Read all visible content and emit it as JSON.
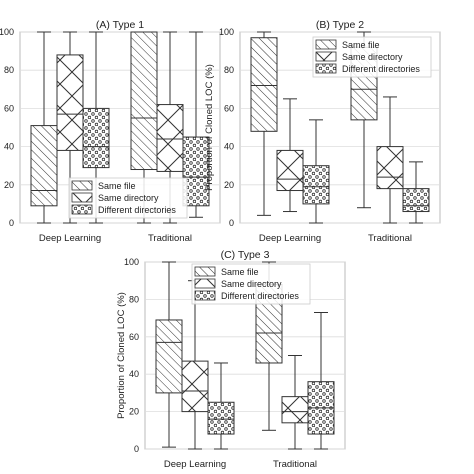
{
  "chart_data": [
    {
      "type": "box",
      "title": "(A) Type 1",
      "xlabel": "",
      "ylabel": "",
      "ylim": [
        0,
        100
      ],
      "yticks": [
        0,
        20,
        40,
        60,
        80,
        100
      ],
      "grid": true,
      "legend_position": "bottom-right",
      "categories": [
        "Deep Learning",
        "Traditional"
      ],
      "series": [
        {
          "name": "Same file",
          "pattern": "diagonal-hatch",
          "boxes": [
            {
              "whislo": 0,
              "q1": 9,
              "med": 17,
              "q3": 51,
              "whishi": 100
            },
            {
              "whislo": 0,
              "q1": 28,
              "med": 55,
              "q3": 100,
              "whishi": 100
            }
          ]
        },
        {
          "name": "Same directory",
          "pattern": "cross-hatch",
          "boxes": [
            {
              "whislo": 0,
              "q1": 38,
              "med": 57,
              "q3": 88,
              "whishi": 100
            },
            {
              "whislo": 0,
              "q1": 27,
              "med": 44,
              "q3": 62,
              "whishi": 100
            }
          ]
        },
        {
          "name": "Different directories",
          "pattern": "dots",
          "boxes": [
            {
              "whislo": 0,
              "q1": 29,
              "med": 40,
              "q3": 60,
              "whishi": 100
            },
            {
              "whislo": 3,
              "q1": 9,
              "med": 24,
              "q3": 45,
              "whishi": 100
            }
          ]
        }
      ]
    },
    {
      "type": "box",
      "title": "(B) Type 2",
      "xlabel": "",
      "ylabel": "Proportion of Cloned LOC (%)",
      "ylim": [
        0,
        100
      ],
      "yticks": [
        0,
        20,
        40,
        60,
        80,
        100
      ],
      "grid": true,
      "legend_position": "top-right",
      "categories": [
        "Deep Learning",
        "Traditional"
      ],
      "series": [
        {
          "name": "Same file",
          "pattern": "diagonal-hatch",
          "boxes": [
            {
              "whislo": 4,
              "q1": 48,
              "med": 72,
              "q3": 97,
              "whishi": 100
            },
            {
              "whislo": 8,
              "q1": 54,
              "med": 70,
              "q3": 92,
              "whishi": 100
            }
          ]
        },
        {
          "name": "Same directory",
          "pattern": "cross-hatch",
          "boxes": [
            {
              "whislo": 6,
              "q1": 17,
              "med": 23,
              "q3": 38,
              "whishi": 65
            },
            {
              "whislo": 0,
              "q1": 18,
              "med": 24,
              "q3": 40,
              "whishi": 66
            }
          ]
        },
        {
          "name": "Different directories",
          "pattern": "dots",
          "boxes": [
            {
              "whislo": 0,
              "q1": 10,
              "med": 19,
              "q3": 30,
              "whishi": 54
            },
            {
              "whislo": 0,
              "q1": 6,
              "med": 9,
              "q3": 18,
              "whishi": 32
            }
          ]
        }
      ]
    },
    {
      "type": "box",
      "title": "(C) Type 3",
      "xlabel": "",
      "ylabel": "Proportion of Cloned LOC (%)",
      "ylim": [
        0,
        100
      ],
      "yticks": [
        0,
        20,
        40,
        60,
        80,
        100
      ],
      "grid": true,
      "legend_position": "top-right",
      "categories": [
        "Deep Learning",
        "Traditional"
      ],
      "series": [
        {
          "name": "Same file",
          "pattern": "diagonal-hatch",
          "boxes": [
            {
              "whislo": 1,
              "q1": 30,
              "med": 57,
              "q3": 69,
              "whishi": 100
            },
            {
              "whislo": 10,
              "q1": 46,
              "med": 62,
              "q3": 88,
              "whishi": 100
            }
          ]
        },
        {
          "name": "Same directory",
          "pattern": "cross-hatch",
          "boxes": [
            {
              "whislo": 0,
              "q1": 20,
              "med": 31,
              "q3": 47,
              "whishi": 90
            },
            {
              "whislo": 0,
              "q1": 14,
              "med": 20,
              "q3": 28,
              "whishi": 50
            }
          ]
        },
        {
          "name": "Different directories",
          "pattern": "dots",
          "boxes": [
            {
              "whislo": 0,
              "q1": 8,
              "med": 16,
              "q3": 25,
              "whishi": 46
            },
            {
              "whislo": 0,
              "q1": 8,
              "med": 22,
              "q3": 36,
              "whishi": 73
            }
          ]
        }
      ]
    }
  ]
}
